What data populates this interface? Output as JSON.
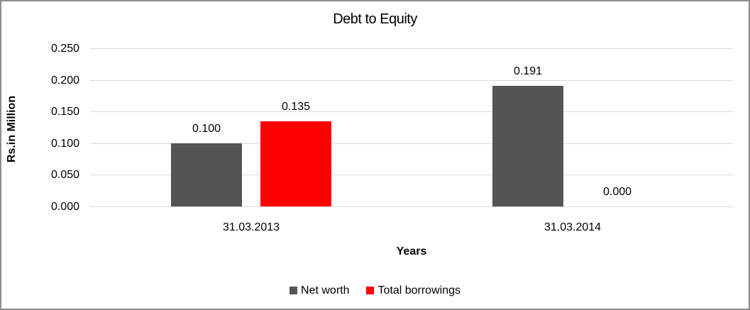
{
  "chart_data": {
    "type": "bar",
    "title": "Debt to Equity",
    "xlabel": "Years",
    "ylabel": "Rs.in Million",
    "categories": [
      "31.03.2013",
      "31.03.2014"
    ],
    "series": [
      {
        "name": "Net worth",
        "color": "#545454",
        "values": [
          0.1,
          0.191
        ],
        "labels": [
          "0.100",
          "0.191"
        ]
      },
      {
        "name": "Total borrowings",
        "color": "#FF0000",
        "values": [
          0.135,
          0.0
        ],
        "labels": [
          "0.135",
          "0.000"
        ]
      }
    ],
    "ylim": [
      0,
      0.25
    ],
    "yticks": [
      {
        "value": 0.0,
        "label": "0.000"
      },
      {
        "value": 0.05,
        "label": "0.050"
      },
      {
        "value": 0.1,
        "label": "0.100"
      },
      {
        "value": 0.15,
        "label": "0.150"
      },
      {
        "value": 0.2,
        "label": "0.200"
      },
      {
        "value": 0.25,
        "label": "0.250"
      }
    ],
    "grid": true,
    "gridline_color": "#D9D9D9",
    "legend_position": "bottom",
    "text_color": "#000000",
    "background_color": "#FFFFFF",
    "frame_border_color": "#8E8E8E"
  }
}
